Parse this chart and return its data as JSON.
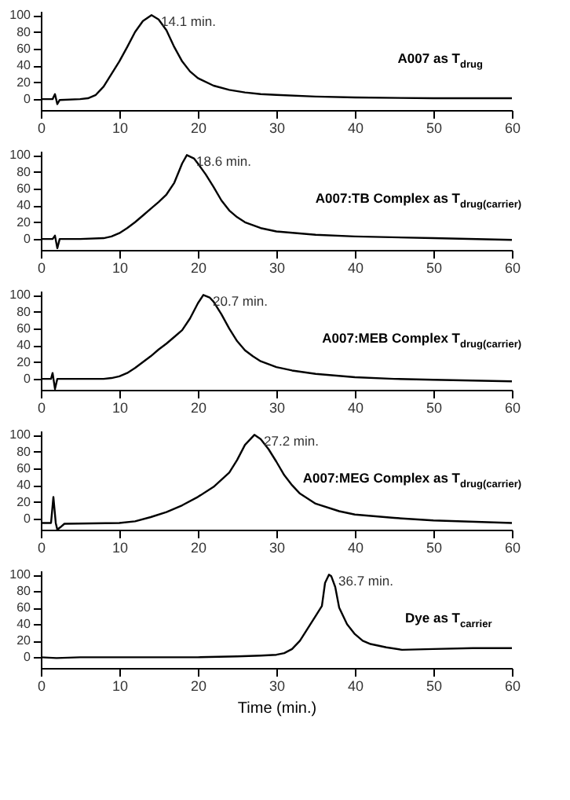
{
  "chart_data": [
    {
      "type": "line",
      "annotations": [
        {
          "text": "14.1 min.",
          "x": 14.1,
          "y": 100
        }
      ],
      "xlim": [
        0,
        60
      ],
      "xticks": [
        0,
        10,
        20,
        30,
        40,
        50,
        60
      ],
      "ylim": [
        -13,
        105
      ],
      "yticks": [
        0,
        20,
        40,
        60,
        80,
        100
      ],
      "grid": false,
      "marker": "none",
      "line_style": "solid",
      "series": [
        {
          "name": "A007 as T$_{drug}$",
          "color": "#000000",
          "x": [
            0,
            1.5,
            1.8,
            2.1,
            2.4,
            5,
            6,
            7,
            8,
            9,
            10,
            11,
            12,
            13,
            14.1,
            15,
            16,
            17,
            18,
            19,
            20,
            22,
            24,
            26,
            28,
            30,
            35,
            40,
            50,
            60
          ],
          "values": [
            0,
            0,
            6,
            -6,
            -1,
            0,
            1,
            5,
            15,
            30,
            45,
            62,
            80,
            93,
            100,
            95,
            82,
            62,
            45,
            33,
            25,
            16,
            11,
            8,
            6,
            5,
            3,
            2,
            1,
            1
          ]
        }
      ]
    },
    {
      "type": "line",
      "annotations": [
        {
          "text": "18.6 min.",
          "x": 18.6,
          "y": 100
        }
      ],
      "xlim": [
        0,
        60
      ],
      "xticks": [
        0,
        10,
        20,
        30,
        40,
        50,
        60
      ],
      "ylim": [
        -13,
        105
      ],
      "yticks": [
        0,
        20,
        40,
        60,
        80,
        100
      ],
      "grid": false,
      "marker": "none",
      "line_style": "solid",
      "series": [
        {
          "name": "A007:TB Complex as T$_{drug(carrier)}$",
          "color": "#000000",
          "x": [
            0,
            1.5,
            1.8,
            2.1,
            2.4,
            5,
            8,
            9,
            10,
            11,
            12,
            13,
            14,
            15,
            16,
            17,
            18,
            18.6,
            19.5,
            20,
            21,
            22,
            23,
            24,
            25,
            26,
            28,
            30,
            35,
            40,
            50,
            60
          ],
          "values": [
            0,
            0,
            4,
            -11,
            0,
            0,
            1,
            3,
            7,
            13,
            20,
            28,
            36,
            44,
            53,
            67,
            90,
            100,
            96,
            90,
            77,
            62,
            46,
            34,
            26,
            20,
            13,
            9,
            5,
            3,
            1,
            -1
          ]
        }
      ]
    },
    {
      "type": "line",
      "annotations": [
        {
          "text": "20.7 min.",
          "x": 20.7,
          "y": 100
        }
      ],
      "xlim": [
        0,
        60
      ],
      "xticks": [
        0,
        10,
        20,
        30,
        40,
        50,
        60
      ],
      "ylim": [
        -13,
        105
      ],
      "yticks": [
        0,
        20,
        40,
        60,
        80,
        100
      ],
      "grid": false,
      "marker": "none",
      "line_style": "solid",
      "series": [
        {
          "name": "A007:MEB Complex T$_{drug(carrier)}$",
          "color": "#000000",
          "x": [
            0,
            1.3,
            1.5,
            1.8,
            2.1,
            8,
            9,
            10,
            11,
            12,
            13,
            14,
            15,
            16,
            17,
            18,
            19,
            20,
            20.7,
            21.5,
            22,
            23,
            24,
            25,
            26,
            27,
            28,
            30,
            32,
            35,
            40,
            45,
            50,
            55,
            60
          ],
          "values": [
            0,
            0,
            7,
            -12,
            0,
            0,
            1,
            3,
            7,
            13,
            20,
            27,
            35,
            42,
            50,
            58,
            72,
            90,
            100,
            97,
            92,
            77,
            60,
            45,
            34,
            27,
            21,
            14,
            10,
            6,
            2,
            0,
            -1,
            -2,
            -3
          ]
        }
      ]
    },
    {
      "type": "line",
      "annotations": [
        {
          "text": "27.2 min.",
          "x": 27.2,
          "y": 100
        }
      ],
      "xlim": [
        0,
        60
      ],
      "xticks": [
        0,
        10,
        20,
        30,
        40,
        50,
        60
      ],
      "ylim": [
        -13,
        105
      ],
      "yticks": [
        0,
        20,
        40,
        60,
        80,
        100
      ],
      "grid": false,
      "marker": "none",
      "line_style": "solid",
      "series": [
        {
          "name": "A007:MEG Complex as T$_{drug(carrier)}$",
          "color": "#000000",
          "x": [
            0,
            1.3,
            1.6,
            1.9,
            2.1,
            2.5,
            3,
            10,
            12,
            14,
            16,
            18,
            20,
            22,
            24,
            25,
            26,
            27.2,
            28,
            29,
            30,
            31,
            32,
            33,
            35,
            38,
            40,
            45,
            50,
            60
          ],
          "values": [
            -5,
            -5,
            26,
            -5,
            -13,
            -10,
            -6,
            -5,
            -3,
            2,
            8,
            16,
            26,
            38,
            55,
            70,
            88,
            100,
            95,
            83,
            68,
            52,
            40,
            30,
            18,
            9,
            5,
            1,
            -2,
            -5
          ]
        }
      ]
    },
    {
      "type": "line",
      "xlabel": "Time (min.)",
      "annotations": [
        {
          "text": "36.7 min.",
          "x": 36.7,
          "y": 100
        }
      ],
      "xlim": [
        0,
        60
      ],
      "xticks": [
        0,
        10,
        20,
        30,
        40,
        50,
        60
      ],
      "ylim": [
        -13,
        105
      ],
      "yticks": [
        0,
        20,
        40,
        60,
        80,
        100
      ],
      "grid": false,
      "marker": "none",
      "line_style": "solid",
      "series": [
        {
          "name": "Dye as T$_{carrier}$",
          "color": "#000000",
          "x": [
            0,
            2,
            5,
            20,
            25,
            28,
            30,
            31,
            32,
            33,
            34,
            35,
            35.8,
            36.2,
            36.7,
            37,
            37.5,
            38,
            39,
            40,
            41,
            42,
            44,
            46,
            50,
            55,
            60
          ],
          "values": [
            0,
            -1,
            0,
            0,
            1,
            2,
            3,
            5,
            10,
            20,
            35,
            50,
            62,
            90,
            100,
            98,
            85,
            60,
            40,
            28,
            20,
            16,
            12,
            9,
            10,
            11,
            11
          ]
        }
      ]
    }
  ]
}
